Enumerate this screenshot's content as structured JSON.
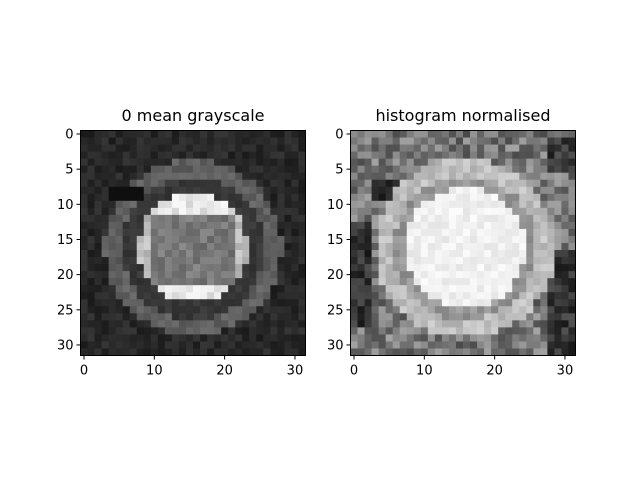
{
  "chart_data": [
    {
      "type": "heatmap",
      "title": "0 mean grayscale",
      "xlabel": "",
      "ylabel": "",
      "xlim": [
        -0.5,
        31.5
      ],
      "ylim": [
        31.5,
        -0.5
      ],
      "x_ticks": [
        0,
        10,
        20,
        30
      ],
      "y_ticks": [
        0,
        5,
        10,
        15,
        20,
        25,
        30
      ],
      "grid": false,
      "colormap": "gray",
      "image_size": [
        32,
        32
      ],
      "content": "low-contrast traffic sign: dark background, circular outer ring, bright inner disc with brightest bands at top and bottom"
    },
    {
      "type": "heatmap",
      "title": "histogram normalised",
      "xlabel": "",
      "ylabel": "",
      "xlim": [
        -0.5,
        31.5
      ],
      "ylim": [
        31.5,
        -0.5
      ],
      "x_ticks": [
        0,
        10,
        20,
        30
      ],
      "y_ticks": [
        0,
        5,
        10,
        15,
        20,
        25,
        30
      ],
      "grid": false,
      "colormap": "gray",
      "image_size": [
        32,
        32
      ],
      "content": "same traffic sign after histogram equalisation: mid-gray textured background, bright ring, near-white inner disc"
    }
  ],
  "colors": {
    "axis": "#000000",
    "background": "#ffffff"
  }
}
